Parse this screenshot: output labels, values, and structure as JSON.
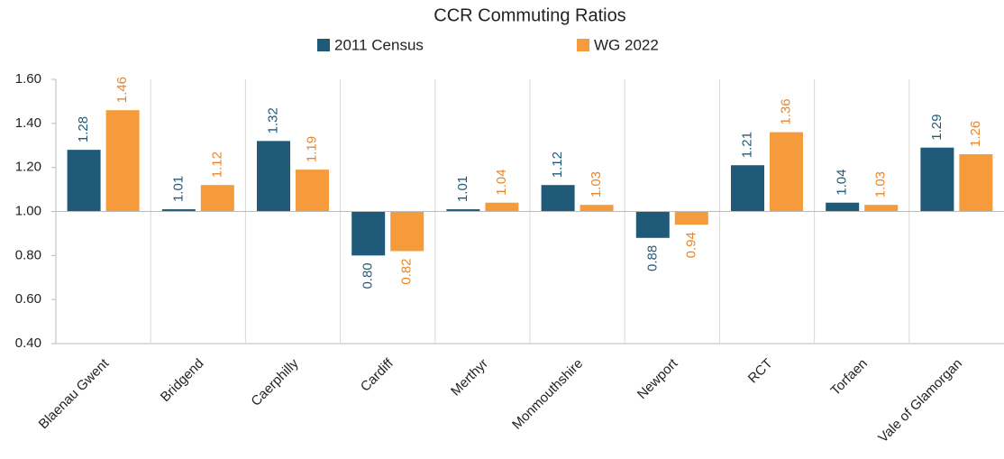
{
  "chart_data": {
    "type": "bar",
    "title": "CCR Commuting Ratios",
    "categories": [
      "Blaenau Gwent",
      "Bridgend",
      "Caerphilly",
      "Cardiff",
      "Merthyr",
      "Monmouthshire",
      "Newport",
      "RCT",
      "Torfaen",
      "Vale of Glamorgan"
    ],
    "series": [
      {
        "name": "2011 Census",
        "color": "#1f5a78",
        "values": [
          1.28,
          1.01,
          1.32,
          0.8,
          1.01,
          1.12,
          0.88,
          1.21,
          1.04,
          1.29
        ],
        "value_labels": [
          "1.28",
          "1.01",
          "1.32",
          "0.80",
          "1.01",
          "1.12",
          "0.88",
          "1.21",
          "1.04",
          "1.29"
        ]
      },
      {
        "name": "WG 2022",
        "color": "#f59b3c",
        "values": [
          1.46,
          1.12,
          1.19,
          0.82,
          1.04,
          1.03,
          0.94,
          1.36,
          1.03,
          1.26
        ],
        "value_labels": [
          "1.46",
          "1.12",
          "1.19",
          "0.82",
          "1.04",
          "1.03",
          "0.94",
          "1.36",
          "1.03",
          "1.26"
        ]
      }
    ],
    "bar_base": 1,
    "ylim": [
      0.4,
      1.6
    ],
    "yticks": [
      {
        "value": 0.4,
        "label": "0.40"
      },
      {
        "value": 0.6,
        "label": "0.60"
      },
      {
        "value": 0.8,
        "label": "0.80"
      },
      {
        "value": 1.0,
        "label": "1.00"
      },
      {
        "value": 1.2,
        "label": "1.20"
      },
      {
        "value": 1.4,
        "label": "1.40"
      },
      {
        "value": 1.6,
        "label": "1.60"
      }
    ],
    "legend": "top"
  }
}
